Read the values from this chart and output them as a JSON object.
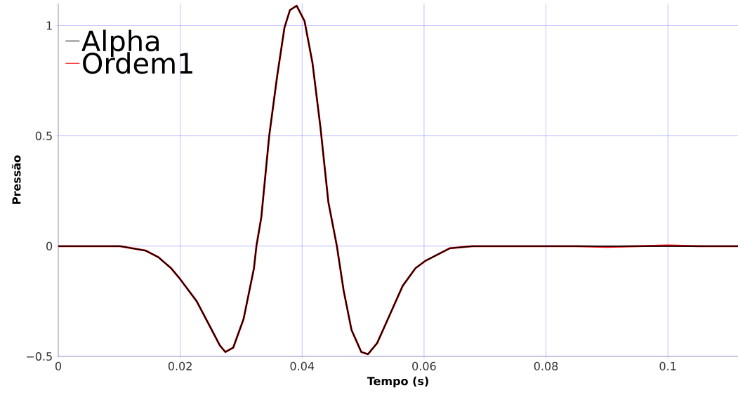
{
  "chart_data": {
    "type": "line",
    "xlabel": "Tempo (s)",
    "ylabel": "Pressão",
    "xlim": [
      0,
      0.1115
    ],
    "ylim": [
      -0.5,
      1.1
    ],
    "xticks": [
      0,
      0.02,
      0.04,
      0.06,
      0.08,
      0.1
    ],
    "yticks": [
      {
        "value": -0.5,
        "label": "−0.5"
      },
      0,
      0.5,
      1
    ],
    "grid": true,
    "legend": "top left",
    "series": [
      {
        "name": "Alpha",
        "color": "#000000",
        "x": [
          0,
          0.005,
          0.0101,
          0.0122,
          0.0143,
          0.0164,
          0.0185,
          0.02,
          0.0227,
          0.0248,
          0.0265,
          0.0274,
          0.0287,
          0.0304,
          0.0321,
          0.0325,
          0.0333,
          0.0346,
          0.0359,
          0.0371,
          0.038,
          0.0391,
          0.0404,
          0.0417,
          0.043,
          0.0443,
          0.0457,
          0.0468,
          0.0481,
          0.0497,
          0.0508,
          0.0523,
          0.0544,
          0.0565,
          0.0586,
          0.0602,
          0.0642,
          0.068,
          0.08,
          0.09,
          0.1,
          0.1115
        ],
        "values": [
          0,
          0,
          0,
          -0.01,
          -0.02,
          -0.05,
          -0.1,
          -0.15,
          -0.25,
          -0.36,
          -0.45,
          -0.48,
          -0.46,
          -0.33,
          -0.1,
          0,
          0.13,
          0.5,
          0.77,
          0.99,
          1.07,
          1.09,
          1.02,
          0.83,
          0.54,
          0.2,
          0,
          -0.2,
          -0.38,
          -0.48,
          -0.49,
          -0.44,
          -0.31,
          -0.18,
          -0.1,
          -0.067,
          -0.01,
          0,
          0,
          0,
          0,
          0
        ]
      },
      {
        "name": "Ordem1",
        "color": "#ff0000",
        "x": [
          0,
          0.005,
          0.0101,
          0.0122,
          0.0143,
          0.0164,
          0.0185,
          0.02,
          0.0227,
          0.0248,
          0.0265,
          0.0274,
          0.0287,
          0.0304,
          0.0321,
          0.0325,
          0.0333,
          0.0346,
          0.0359,
          0.0371,
          0.038,
          0.0391,
          0.0404,
          0.0417,
          0.043,
          0.0443,
          0.0457,
          0.0468,
          0.0481,
          0.0497,
          0.0508,
          0.0523,
          0.0544,
          0.0565,
          0.0586,
          0.0602,
          0.0642,
          0.068,
          0.08,
          0.085,
          0.09,
          0.095,
          0.1,
          0.105,
          0.1115
        ],
        "values": [
          0,
          0,
          0,
          -0.01,
          -0.02,
          -0.05,
          -0.1,
          -0.15,
          -0.25,
          -0.36,
          -0.45,
          -0.48,
          -0.46,
          -0.33,
          -0.1,
          0,
          0.13,
          0.5,
          0.77,
          0.99,
          1.07,
          1.09,
          1.02,
          0.83,
          0.54,
          0.2,
          0,
          -0.2,
          -0.38,
          -0.48,
          -0.49,
          -0.44,
          -0.31,
          -0.18,
          -0.1,
          -0.067,
          -0.01,
          0,
          0,
          0,
          -0.003,
          0,
          0.003,
          0,
          0
        ]
      }
    ]
  }
}
